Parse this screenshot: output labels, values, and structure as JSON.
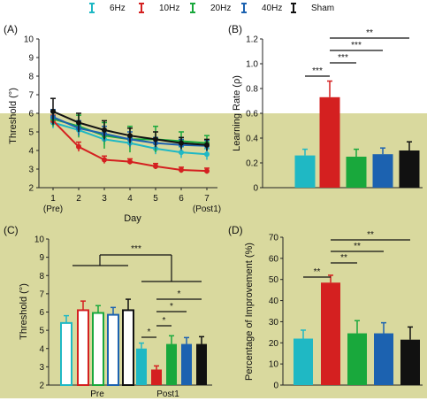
{
  "colors": {
    "6Hz": "#1fb8c4",
    "10Hz": "#d42020",
    "20Hz": "#19a83c",
    "40Hz": "#1c62b0",
    "Sham": "#111111",
    "overlay": "#d8d89c",
    "pre_fill": "#ffffff"
  },
  "legend": [
    "6Hz",
    "10Hz",
    "20Hz",
    "40Hz",
    "Sham"
  ],
  "chart_data": [
    {
      "panel": "(A)",
      "type": "line",
      "xlabel": "Day",
      "ylabel": "Threshold (°)",
      "ylim": [
        2,
        10
      ],
      "yticks": [
        2,
        3,
        4,
        5,
        6,
        7,
        8,
        9,
        10
      ],
      "x": [
        1,
        2,
        3,
        4,
        5,
        6,
        7
      ],
      "xticks": [
        "1",
        "2",
        "3",
        "4",
        "5",
        "6",
        "7"
      ],
      "xsublabels": [
        {
          "x": 1,
          "label": "(Pre)"
        },
        {
          "x": 7,
          "label": "(Post1)"
        }
      ],
      "series": [
        {
          "name": "6Hz",
          "values": [
            5.5,
            5.1,
            4.6,
            4.4,
            4.1,
            3.9,
            3.8
          ],
          "err": [
            0.3,
            0.3,
            0.3,
            0.3,
            0.3,
            0.3,
            0.3
          ]
        },
        {
          "name": "10Hz",
          "values": [
            5.6,
            4.2,
            3.5,
            3.4,
            3.15,
            2.95,
            2.9
          ],
          "err": [
            0.3,
            0.25,
            0.2,
            0.15,
            0.15,
            0.15,
            0.15
          ]
        },
        {
          "name": "20Hz",
          "values": [
            5.7,
            5.3,
            4.8,
            4.6,
            4.6,
            4.5,
            4.4
          ],
          "err": [
            0.4,
            0.6,
            0.7,
            0.7,
            0.7,
            0.5,
            0.4
          ]
        },
        {
          "name": "40Hz",
          "values": [
            5.8,
            5.2,
            4.9,
            4.6,
            4.4,
            4.3,
            4.25
          ],
          "err": [
            0.4,
            0.4,
            0.4,
            0.4,
            0.3,
            0.3,
            0.3
          ]
        },
        {
          "name": "Sham",
          "values": [
            6.1,
            5.5,
            5.1,
            4.8,
            4.6,
            4.4,
            4.3
          ],
          "err": [
            0.7,
            0.5,
            0.5,
            0.4,
            0.4,
            0.3,
            0.3
          ]
        }
      ]
    },
    {
      "panel": "(B)",
      "type": "bar",
      "ylabel": "Learning Rate (ρ)",
      "ylim": [
        0,
        1.2
      ],
      "yticks": [
        "0",
        "0.2",
        "0.4",
        "0.6",
        "0.8",
        "1.0",
        "1.2"
      ],
      "categories": [
        "6Hz",
        "10Hz",
        "20Hz",
        "40Hz",
        "Sham"
      ],
      "values": [
        0.26,
        0.73,
        0.25,
        0.27,
        0.3
      ],
      "err": [
        0.05,
        0.13,
        0.06,
        0.05,
        0.07
      ],
      "significance": [
        {
          "from": 0,
          "to": 1,
          "label": "***"
        },
        {
          "from": 1,
          "to": 2,
          "label": "***"
        },
        {
          "from": 1,
          "to": 3,
          "label": "***"
        },
        {
          "from": 1,
          "to": 4,
          "label": "**"
        }
      ]
    },
    {
      "panel": "(C)",
      "type": "bar",
      "ylabel": "Threshold (°)",
      "ylim": [
        2,
        10
      ],
      "yticks": [
        2,
        3,
        4,
        5,
        6,
        7,
        8,
        9,
        10
      ],
      "categories": [
        "Pre",
        "Post1"
      ],
      "series": [
        {
          "name": "6Hz",
          "values": [
            5.4,
            4.0
          ],
          "err": [
            0.4,
            0.3
          ]
        },
        {
          "name": "10Hz",
          "values": [
            6.1,
            2.85
          ],
          "err": [
            0.5,
            0.2
          ]
        },
        {
          "name": "20Hz",
          "values": [
            5.95,
            4.25
          ],
          "err": [
            0.4,
            0.45
          ]
        },
        {
          "name": "40Hz",
          "values": [
            5.85,
            4.25
          ],
          "err": [
            0.4,
            0.35
          ]
        },
        {
          "name": "Sham",
          "values": [
            6.1,
            4.25
          ],
          "err": [
            0.6,
            0.4
          ]
        }
      ],
      "significance": [
        {
          "label": "***",
          "between": [
            "Pre",
            "Post1"
          ]
        },
        {
          "label": "*",
          "from": "6Hz",
          "to": "10Hz"
        },
        {
          "label": "*",
          "from": "10Hz",
          "to": "20Hz"
        },
        {
          "label": "*",
          "from": "10Hz",
          "to": "40Hz"
        },
        {
          "label": "*",
          "from": "10Hz",
          "to": "Sham"
        }
      ]
    },
    {
      "panel": "(D)",
      "type": "bar",
      "ylabel": "Percentage of Improvement (%)",
      "ylim": [
        0,
        70
      ],
      "yticks": [
        "0",
        "10",
        "20",
        "30",
        "40",
        "50",
        "60",
        "70"
      ],
      "categories": [
        "6Hz",
        "10Hz",
        "20Hz",
        "40Hz",
        "Sham"
      ],
      "values": [
        22,
        48.5,
        24.5,
        24.5,
        21.5
      ],
      "err": [
        4,
        3.5,
        6,
        5,
        6
      ],
      "significance": [
        {
          "from": 0,
          "to": 1,
          "label": "**"
        },
        {
          "from": 1,
          "to": 2,
          "label": "**"
        },
        {
          "from": 1,
          "to": 3,
          "label": "**"
        },
        {
          "from": 1,
          "to": 4,
          "label": "**"
        }
      ]
    }
  ]
}
